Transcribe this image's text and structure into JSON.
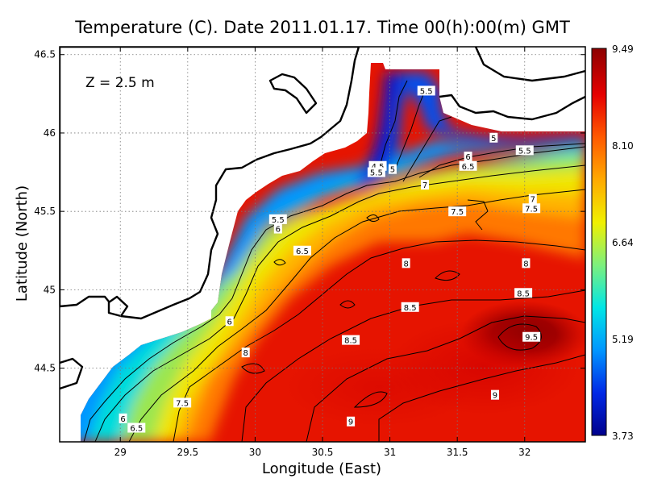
{
  "title": "Temperature (C). Date 2011.01.17. Time 00(h):00(m) GMT",
  "depth_label": "Z = 2.5 m",
  "x_axis": {
    "label": "Longitude (East)",
    "range": [
      28.55,
      32.45
    ],
    "ticks": [
      29,
      29.5,
      30,
      30.5,
      31,
      31.5,
      32
    ],
    "tick_labels": [
      "29",
      "29.5",
      "30",
      "30.5",
      "31",
      "31.5",
      "32"
    ]
  },
  "y_axis": {
    "label": "Latitude (North)",
    "range": [
      44.03,
      46.55
    ],
    "ticks": [
      44.5,
      45,
      45.5,
      46,
      46.5
    ],
    "tick_labels": [
      "44.5",
      "45",
      "45.5",
      "46",
      "46.5"
    ]
  },
  "colorbar": {
    "min": 3.73,
    "max": 9.49,
    "tick_labels": [
      "9.49",
      "8.10",
      "6.64",
      "5.19",
      "3.73"
    ],
    "colors": [
      "#00008c",
      "#0028e6",
      "#0096ff",
      "#00e6e6",
      "#7df07d",
      "#f0f000",
      "#ffaa00",
      "#ff5a00",
      "#e60000",
      "#8c0000"
    ]
  },
  "contour_labels": [
    {
      "text": "5.5",
      "lon": 31.27,
      "lat": 46.27
    },
    {
      "text": "5",
      "lon": 31.77,
      "lat": 45.97
    },
    {
      "text": "5.5",
      "lon": 32.0,
      "lat": 45.89
    },
    {
      "text": "6",
      "lon": 31.58,
      "lat": 45.85
    },
    {
      "text": "6.5",
      "lon": 31.58,
      "lat": 45.79
    },
    {
      "text": "4.5",
      "lon": 30.91,
      "lat": 45.79
    },
    {
      "text": "5",
      "lon": 31.02,
      "lat": 45.77
    },
    {
      "text": "5.5",
      "lon": 30.9,
      "lat": 45.75
    },
    {
      "text": "7",
      "lon": 31.26,
      "lat": 45.67
    },
    {
      "text": "7",
      "lon": 32.06,
      "lat": 45.58
    },
    {
      "text": "7.5",
      "lon": 32.05,
      "lat": 45.52
    },
    {
      "text": "7.5",
      "lon": 31.5,
      "lat": 45.5
    },
    {
      "text": "5.5",
      "lon": 30.17,
      "lat": 45.45
    },
    {
      "text": "6",
      "lon": 30.17,
      "lat": 45.39
    },
    {
      "text": "6.5",
      "lon": 30.35,
      "lat": 45.25
    },
    {
      "text": "8",
      "lon": 31.12,
      "lat": 45.17
    },
    {
      "text": "8",
      "lon": 32.01,
      "lat": 45.17
    },
    {
      "text": "8.5",
      "lon": 31.99,
      "lat": 44.98
    },
    {
      "text": "8.5",
      "lon": 31.15,
      "lat": 44.89
    },
    {
      "text": "6",
      "lon": 29.81,
      "lat": 44.8
    },
    {
      "text": "9.5",
      "lon": 32.05,
      "lat": 44.7
    },
    {
      "text": "8.5",
      "lon": 30.71,
      "lat": 44.68
    },
    {
      "text": "8",
      "lon": 29.93,
      "lat": 44.6
    },
    {
      "text": "9",
      "lon": 31.78,
      "lat": 44.33
    },
    {
      "text": "7.5",
      "lon": 29.46,
      "lat": 44.28
    },
    {
      "text": "6",
      "lon": 29.02,
      "lat": 44.18
    },
    {
      "text": "6.5",
      "lon": 29.12,
      "lat": 44.12
    },
    {
      "text": "9",
      "lon": 30.71,
      "lat": 44.16
    }
  ]
}
